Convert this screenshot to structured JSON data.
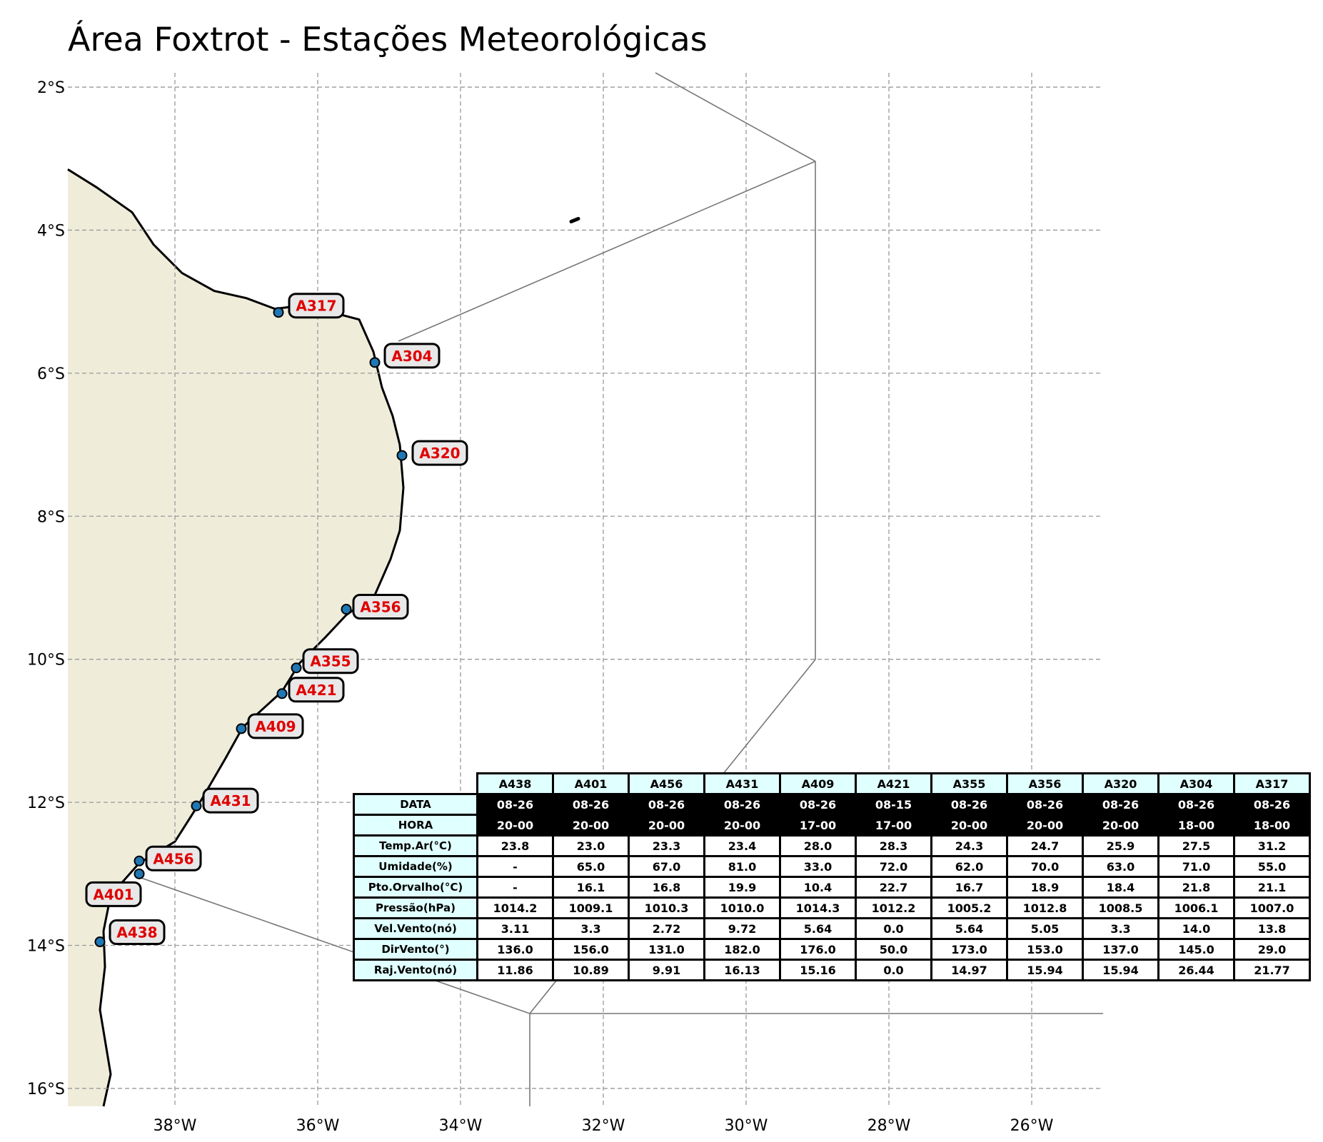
{
  "title": "Área Foxtrot - Estações Meteorológicas",
  "map": {
    "extent": {
      "lon_min": -39.5,
      "lon_max": -25,
      "lat_min": -16.25,
      "lat_max": -1.8
    },
    "lat_ticks": [
      {
        "lat": -2,
        "label": "2°S"
      },
      {
        "lat": -4,
        "label": "4°S"
      },
      {
        "lat": -6,
        "label": "6°S"
      },
      {
        "lat": -8,
        "label": "8°S"
      },
      {
        "lat": -10,
        "label": "10°S"
      },
      {
        "lat": -12,
        "label": "12°S"
      },
      {
        "lat": -14,
        "label": "14°S"
      },
      {
        "lat": -16,
        "label": "16°S"
      }
    ],
    "lon_ticks": [
      {
        "lon": -38,
        "label": "38°W"
      },
      {
        "lon": -36,
        "label": "36°W"
      },
      {
        "lon": -34,
        "label": "34°W"
      },
      {
        "lon": -32,
        "label": "32°W"
      },
      {
        "lon": -30,
        "label": "30°W"
      },
      {
        "lon": -28,
        "label": "28°W"
      },
      {
        "lon": -26,
        "label": "26°W"
      }
    ],
    "grid": true,
    "land_color": "#efedda",
    "coast_color": "#000000",
    "station_color": "#1f77b4",
    "label_color": "#e00000",
    "label_bg": "#e8e8e8",
    "stations": [
      {
        "id": "A317",
        "lon": -36.55,
        "lat": -5.15
      },
      {
        "id": "A304",
        "lon": -35.2,
        "lat": -5.85
      },
      {
        "id": "A320",
        "lon": -34.82,
        "lat": -7.15
      },
      {
        "id": "A356",
        "lon": -35.6,
        "lat": -9.3
      },
      {
        "id": "A355",
        "lon": -36.3,
        "lat": -10.12
      },
      {
        "id": "A421",
        "lon": -36.5,
        "lat": -10.48
      },
      {
        "id": "A409",
        "lon": -37.07,
        "lat": -10.97
      },
      {
        "id": "A431",
        "lon": -37.7,
        "lat": -12.05
      },
      {
        "id": "A456",
        "lon": -38.5,
        "lat": -12.82
      },
      {
        "id": "A401",
        "lon": -38.5,
        "lat": -13.0
      },
      {
        "id": "A438",
        "lon": -39.05,
        "lat": -13.95
      }
    ]
  },
  "table": {
    "columns": [
      "A438",
      "A401",
      "A456",
      "A431",
      "A409",
      "A421",
      "A355",
      "A356",
      "A320",
      "A304",
      "A317"
    ],
    "rows": [
      {
        "label": "DATA",
        "style": "dark",
        "values": [
          "08-26",
          "08-26",
          "08-26",
          "08-26",
          "08-26",
          "08-15",
          "08-26",
          "08-26",
          "08-26",
          "08-26",
          "08-26"
        ]
      },
      {
        "label": "HORA",
        "style": "dark",
        "values": [
          "20-00",
          "20-00",
          "20-00",
          "20-00",
          "17-00",
          "17-00",
          "20-00",
          "20-00",
          "20-00",
          "18-00",
          "18-00"
        ]
      },
      {
        "label": "Temp.Ar(°C)",
        "style": "val",
        "values": [
          "23.8",
          "23.0",
          "23.3",
          "23.4",
          "28.0",
          "28.3",
          "24.3",
          "24.7",
          "25.9",
          "27.5",
          "31.2"
        ]
      },
      {
        "label": "Umidade(%)",
        "style": "val",
        "values": [
          "-",
          "65.0",
          "67.0",
          "81.0",
          "33.0",
          "72.0",
          "62.0",
          "70.0",
          "63.0",
          "71.0",
          "55.0"
        ]
      },
      {
        "label": "Pto.Orvalho(°C)",
        "style": "val",
        "values": [
          "-",
          "16.1",
          "16.8",
          "19.9",
          "10.4",
          "22.7",
          "16.7",
          "18.9",
          "18.4",
          "21.8",
          "21.1"
        ]
      },
      {
        "label": "Pressão(hPa)",
        "style": "val",
        "values": [
          "1014.2",
          "1009.1",
          "1010.3",
          "1010.0",
          "1014.3",
          "1012.2",
          "1005.2",
          "1012.8",
          "1008.5",
          "1006.1",
          "1007.0"
        ]
      },
      {
        "label": "Vel.Vento(nó)",
        "style": "val",
        "values": [
          "3.11",
          "3.3",
          "2.72",
          "9.72",
          "5.64",
          "0.0",
          "5.64",
          "5.05",
          "3.3",
          "14.0",
          "13.8"
        ]
      },
      {
        "label": "DirVento(°)",
        "style": "val",
        "values": [
          "136.0",
          "156.0",
          "131.0",
          "182.0",
          "176.0",
          "50.0",
          "173.0",
          "153.0",
          "137.0",
          "145.0",
          "29.0"
        ]
      },
      {
        "label": "Raj.Vento(nó)",
        "style": "val",
        "values": [
          "11.86",
          "10.89",
          "9.91",
          "16.13",
          "15.16",
          "0.0",
          "14.97",
          "15.94",
          "15.94",
          "26.44",
          "21.77"
        ]
      }
    ]
  }
}
